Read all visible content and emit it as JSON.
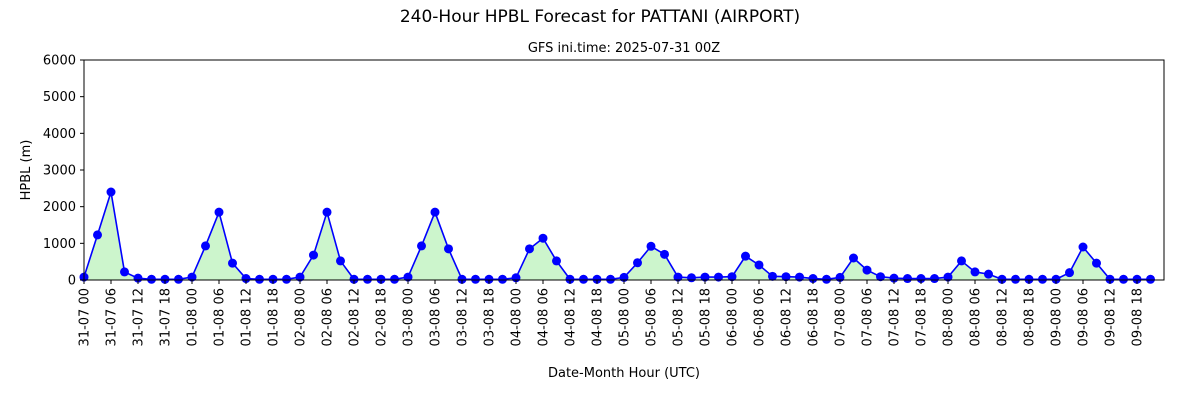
{
  "chart_data": {
    "type": "line",
    "title": "240-Hour HPBL Forecast for PATTANI (AIRPORT)",
    "subtitle": "GFS ini.time: 2025-07-31 00Z",
    "xlabel": "Date-Month Hour (UTC)",
    "ylabel": "HPBL (m)",
    "ylim": [
      0,
      6000
    ],
    "yticks": [
      0,
      1000,
      2000,
      3000,
      4000,
      5000,
      6000
    ],
    "x_tick_labels": [
      "31-07 00",
      "31-07 06",
      "31-07 12",
      "31-07 18",
      "01-08 00",
      "01-08 06",
      "01-08 12",
      "01-08 18",
      "02-08 00",
      "02-08 06",
      "02-08 12",
      "02-08 18",
      "03-08 00",
      "03-08 06",
      "03-08 12",
      "03-08 18",
      "04-08 00",
      "04-08 06",
      "04-08 12",
      "04-08 18",
      "05-08 00",
      "05-08 06",
      "05-08 12",
      "05-08 18",
      "06-08 00",
      "06-08 06",
      "06-08 12",
      "06-08 18",
      "07-08 00",
      "07-08 06",
      "07-08 12",
      "07-08 18",
      "08-08 00",
      "08-08 06",
      "08-08 12",
      "08-08 18",
      "09-08 00",
      "09-08 06",
      "09-08 12",
      "09-08 18"
    ],
    "grid": false,
    "line_color": "#0000ff",
    "fill_color": "#ccf5cc",
    "series": [
      {
        "x": [
          "31-07 00",
          "31-07 03",
          "31-07 06",
          "31-07 09",
          "31-07 12",
          "31-07 15",
          "31-07 18",
          "31-07 21",
          "01-08 00",
          "01-08 03",
          "01-08 06",
          "01-08 09",
          "01-08 12",
          "01-08 15",
          "01-08 18",
          "01-08 21",
          "02-08 00",
          "02-08 03",
          "02-08 06",
          "02-08 09",
          "02-08 12",
          "02-08 15",
          "02-08 18",
          "02-08 21",
          "03-08 00",
          "03-08 03",
          "03-08 06",
          "03-08 09",
          "03-08 12",
          "03-08 15",
          "03-08 18",
          "03-08 21",
          "04-08 00",
          "04-08 03",
          "04-08 06",
          "04-08 09",
          "04-08 12",
          "04-08 15",
          "04-08 18",
          "04-08 21",
          "05-08 00",
          "05-08 03",
          "05-08 06",
          "05-08 09",
          "05-08 12",
          "05-08 15",
          "05-08 18",
          "05-08 21",
          "06-08 00",
          "06-08 03",
          "06-08 06",
          "06-08 09",
          "06-08 12",
          "06-08 15",
          "06-08 18",
          "06-08 21",
          "07-08 00",
          "07-08 03",
          "07-08 06",
          "07-08 09",
          "07-08 12",
          "07-08 15",
          "07-08 18",
          "07-08 21",
          "08-08 00",
          "08-08 03",
          "08-08 06",
          "08-08 09",
          "08-08 12",
          "08-08 15",
          "08-08 18",
          "08-08 21",
          "09-08 00",
          "09-08 03",
          "09-08 06",
          "09-08 09",
          "09-08 12",
          "09-08 15",
          "09-08 18",
          "09-08 21"
        ],
        "y": [
          80,
          1230,
          2400,
          220,
          50,
          20,
          20,
          20,
          80,
          930,
          1850,
          460,
          40,
          20,
          20,
          20,
          80,
          680,
          1850,
          520,
          20,
          20,
          20,
          20,
          80,
          930,
          1850,
          850,
          20,
          20,
          20,
          20,
          60,
          850,
          1140,
          520,
          20,
          20,
          20,
          20,
          70,
          470,
          920,
          700,
          80,
          60,
          80,
          80,
          90,
          650,
          410,
          100,
          90,
          80,
          40,
          20,
          70,
          600,
          270,
          90,
          50,
          40,
          40,
          40,
          80,
          520,
          220,
          160,
          20,
          20,
          20,
          20,
          20,
          200,
          900,
          460,
          20,
          20,
          20,
          20
        ]
      }
    ]
  }
}
